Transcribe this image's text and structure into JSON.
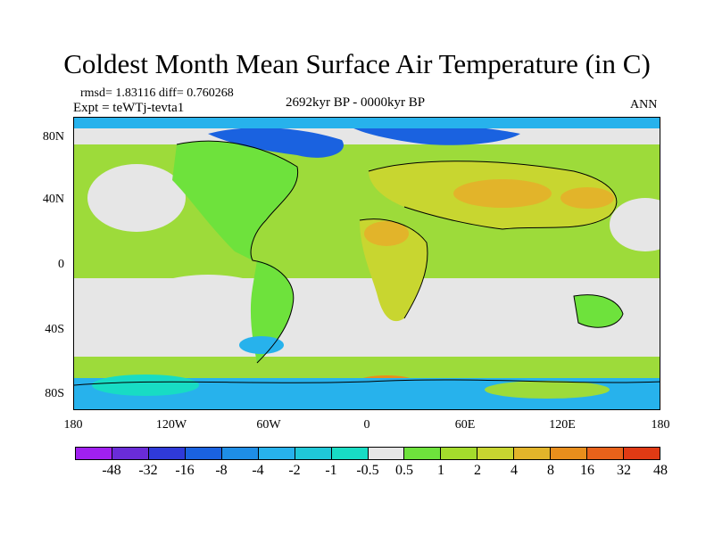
{
  "title": "Coldest Month Mean Surface Air Temperature (in C)",
  "stats": "rmsd= 1.83116 diff= 0.760268",
  "experiment": "Expt = teWTj-tevta1",
  "period": "2692kyr BP - 0000kyr BP",
  "season": "ANN",
  "lat_labels": [
    "80N",
    "40N",
    "0",
    "40S",
    "80S"
  ],
  "lon_labels": [
    "180",
    "120W",
    "60W",
    "0",
    "60E",
    "120E",
    "180"
  ],
  "colorbar": {
    "labels": [
      "-48",
      "-32",
      "-16",
      "-8",
      "-4",
      "-2",
      "-1",
      "-0.5",
      "0.5",
      "1",
      "2",
      "4",
      "8",
      "16",
      "32",
      "48"
    ],
    "colors": [
      "#a020f0",
      "#6a2cd8",
      "#2f3ad9",
      "#1a62e0",
      "#1e8ee6",
      "#27b2ec",
      "#1fc8d8",
      "#18dcc4",
      "#e6e6e6",
      "#6ee23c",
      "#a4dc2c",
      "#c8d630",
      "#e2b42a",
      "#e88e1c",
      "#e8621a",
      "#e03a14"
    ]
  },
  "map_colors": {
    "neutral": "#e6e6e6",
    "light_green": "#9ddb3a",
    "green": "#6ee23c",
    "yellow_green": "#c8d630",
    "orange": "#e2b42a",
    "dark_orange": "#e88e1c",
    "cyan": "#27b2ec",
    "blue": "#1a62e0",
    "teal": "#18dcc4"
  }
}
